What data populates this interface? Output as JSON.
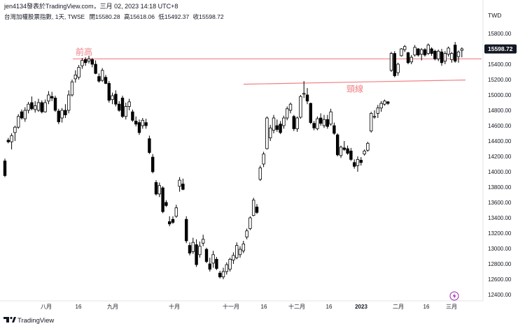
{
  "header": {
    "publisher": "jen4134發表於TradingView.com，三月 02, 2023 14:18 UTC+8",
    "symbol_line": "台灣加權股票指數, 1天, TWSE",
    "ohlc": [
      {
        "label": "開",
        "value": "15580.28"
      },
      {
        "label": "高",
        "value": "15618.06"
      },
      {
        "label": "低",
        "value": "15492.37"
      },
      {
        "label": "收",
        "value": "15598.72"
      }
    ]
  },
  "footer": {
    "brand": "TradingView"
  },
  "colors": {
    "up": "#ffffff",
    "down": "#000000",
    "wick": "#000000",
    "annotation": "#f07f83",
    "price_tag": "#131722",
    "grid": "#e0e3eb",
    "accent": "#9c27b0"
  },
  "chart_data": {
    "type": "candlestick",
    "currency": "TWD",
    "last_price": "15598.72",
    "ylim": [
      12300,
      15980
    ],
    "y_ticks": [
      12400,
      12600,
      12800,
      13000,
      13200,
      13400,
      13600,
      13800,
      14000,
      14200,
      14400,
      14600,
      14800,
      15000,
      15200,
      15400,
      15600,
      15800
    ],
    "x_ticks": [
      "八月",
      "16",
      "九月",
      "十月",
      "十一月",
      "16",
      "十二月",
      "16",
      "2023",
      "二月",
      "16",
      "三月"
    ],
    "x_tick_bold": "2023",
    "annotations": [
      {
        "text": "前高",
        "price": 15470
      },
      {
        "text": "頸線",
        "price": 15170
      }
    ],
    "candles": [
      {
        "o": 14140,
        "h": 14170,
        "l": 13930,
        "c": 13950
      },
      {
        "o": 14410,
        "h": 14440,
        "l": 14370,
        "c": 14390
      },
      {
        "o": 14390,
        "h": 14500,
        "l": 14290,
        "c": 14470
      },
      {
        "o": 14510,
        "h": 14600,
        "l": 14400,
        "c": 14580
      },
      {
        "o": 14580,
        "h": 14750,
        "l": 14560,
        "c": 14720
      },
      {
        "o": 14780,
        "h": 14810,
        "l": 14680,
        "c": 14700
      },
      {
        "o": 14690,
        "h": 14840,
        "l": 14650,
        "c": 14800
      },
      {
        "o": 14800,
        "h": 14910,
        "l": 14760,
        "c": 14880
      },
      {
        "o": 14900,
        "h": 14980,
        "l": 14800,
        "c": 14820
      },
      {
        "o": 14810,
        "h": 14920,
        "l": 14770,
        "c": 14860
      },
      {
        "o": 14800,
        "h": 14950,
        "l": 14780,
        "c": 14900
      },
      {
        "o": 14900,
        "h": 14930,
        "l": 14760,
        "c": 14780
      },
      {
        "o": 14780,
        "h": 14940,
        "l": 14770,
        "c": 14900
      },
      {
        "o": 14920,
        "h": 15050,
        "l": 14880,
        "c": 15000
      },
      {
        "o": 14980,
        "h": 15040,
        "l": 14920,
        "c": 14960
      },
      {
        "o": 14960,
        "h": 14990,
        "l": 14780,
        "c": 14800
      },
      {
        "o": 14790,
        "h": 14820,
        "l": 14620,
        "c": 14650
      },
      {
        "o": 14700,
        "h": 14830,
        "l": 14640,
        "c": 14800
      },
      {
        "o": 14800,
        "h": 14880,
        "l": 14700,
        "c": 14740
      },
      {
        "o": 14800,
        "h": 15060,
        "l": 14760,
        "c": 15000
      },
      {
        "o": 15000,
        "h": 15200,
        "l": 14980,
        "c": 15170
      },
      {
        "o": 15210,
        "h": 15320,
        "l": 15160,
        "c": 15260
      },
      {
        "o": 15230,
        "h": 15390,
        "l": 15200,
        "c": 15360
      },
      {
        "o": 15380,
        "h": 15480,
        "l": 15340,
        "c": 15450
      },
      {
        "o": 15460,
        "h": 15490,
        "l": 15380,
        "c": 15420
      },
      {
        "o": 15440,
        "h": 15510,
        "l": 15410,
        "c": 15470
      },
      {
        "o": 15460,
        "h": 15480,
        "l": 15360,
        "c": 15400
      },
      {
        "o": 15400,
        "h": 15450,
        "l": 15270,
        "c": 15280
      },
      {
        "o": 15240,
        "h": 15280,
        "l": 15160,
        "c": 15180
      },
      {
        "o": 15190,
        "h": 15350,
        "l": 15170,
        "c": 15320
      },
      {
        "o": 15230,
        "h": 15260,
        "l": 15140,
        "c": 15150
      },
      {
        "o": 15150,
        "h": 15180,
        "l": 14900,
        "c": 14930
      },
      {
        "o": 14940,
        "h": 15030,
        "l": 14880,
        "c": 14990
      },
      {
        "o": 15010,
        "h": 15060,
        "l": 14850,
        "c": 14880
      },
      {
        "o": 14880,
        "h": 14920,
        "l": 14780,
        "c": 14800
      },
      {
        "o": 14960,
        "h": 14990,
        "l": 14700,
        "c": 14720
      },
      {
        "o": 14720,
        "h": 14900,
        "l": 14680,
        "c": 14850
      },
      {
        "o": 14850,
        "h": 14950,
        "l": 14800,
        "c": 14910
      },
      {
        "o": 14780,
        "h": 14810,
        "l": 14650,
        "c": 14670
      },
      {
        "o": 14660,
        "h": 14720,
        "l": 14590,
        "c": 14620
      },
      {
        "o": 14640,
        "h": 14680,
        "l": 14480,
        "c": 14510
      },
      {
        "o": 14600,
        "h": 14700,
        "l": 14560,
        "c": 14670
      },
      {
        "o": 14640,
        "h": 14690,
        "l": 14560,
        "c": 14600
      },
      {
        "o": 14430,
        "h": 14470,
        "l": 14230,
        "c": 14250
      },
      {
        "o": 14190,
        "h": 14230,
        "l": 13980,
        "c": 14000
      },
      {
        "o": 13860,
        "h": 13890,
        "l": 13690,
        "c": 13710
      },
      {
        "o": 13710,
        "h": 13860,
        "l": 13670,
        "c": 13820
      },
      {
        "o": 13790,
        "h": 13810,
        "l": 13460,
        "c": 13480
      },
      {
        "o": 13600,
        "h": 13630,
        "l": 13540,
        "c": 13560
      },
      {
        "o": 13350,
        "h": 13420,
        "l": 13290,
        "c": 13320
      },
      {
        "o": 13380,
        "h": 13420,
        "l": 13320,
        "c": 13340
      },
      {
        "o": 13420,
        "h": 13570,
        "l": 13400,
        "c": 13530
      },
      {
        "o": 13810,
        "h": 13930,
        "l": 13740,
        "c": 13890
      },
      {
        "o": 13840,
        "h": 13910,
        "l": 13760,
        "c": 13770
      },
      {
        "o": 13380,
        "h": 13420,
        "l": 13070,
        "c": 13100
      },
      {
        "o": 13040,
        "h": 13080,
        "l": 12910,
        "c": 12940
      },
      {
        "o": 12960,
        "h": 13140,
        "l": 12930,
        "c": 13080
      },
      {
        "o": 13050,
        "h": 13120,
        "l": 12760,
        "c": 12790
      },
      {
        "o": 12920,
        "h": 13090,
        "l": 12880,
        "c": 13030
      },
      {
        "o": 13070,
        "h": 13180,
        "l": 13030,
        "c": 13120
      },
      {
        "o": 12990,
        "h": 13010,
        "l": 12810,
        "c": 12830
      },
      {
        "o": 12800,
        "h": 12880,
        "l": 12700,
        "c": 12730
      },
      {
        "o": 12810,
        "h": 12970,
        "l": 12750,
        "c": 12920
      },
      {
        "o": 12860,
        "h": 12890,
        "l": 12720,
        "c": 12740
      },
      {
        "o": 12680,
        "h": 12710,
        "l": 12610,
        "c": 12630
      },
      {
        "o": 12630,
        "h": 12750,
        "l": 12600,
        "c": 12700
      },
      {
        "o": 12700,
        "h": 12820,
        "l": 12660,
        "c": 12790
      },
      {
        "o": 12730,
        "h": 12880,
        "l": 12700,
        "c": 12860
      },
      {
        "o": 12850,
        "h": 12950,
        "l": 12800,
        "c": 12910
      },
      {
        "o": 12880,
        "h": 13080,
        "l": 12860,
        "c": 13040
      },
      {
        "o": 12920,
        "h": 13030,
        "l": 12880,
        "c": 12990
      },
      {
        "o": 12970,
        "h": 13100,
        "l": 12940,
        "c": 13060
      },
      {
        "o": 13150,
        "h": 13260,
        "l": 13120,
        "c": 13230
      },
      {
        "o": 13260,
        "h": 13420,
        "l": 13240,
        "c": 13400
      },
      {
        "o": 13430,
        "h": 13660,
        "l": 13420,
        "c": 13630
      },
      {
        "o": 13540,
        "h": 13580,
        "l": 13450,
        "c": 13470
      },
      {
        "o": 13900,
        "h": 14080,
        "l": 13880,
        "c": 14050
      },
      {
        "o": 14100,
        "h": 14260,
        "l": 14060,
        "c": 14230
      },
      {
        "o": 14300,
        "h": 14720,
        "l": 14290,
        "c": 14700
      },
      {
        "o": 14440,
        "h": 14610,
        "l": 14400,
        "c": 14570
      },
      {
        "o": 14540,
        "h": 14740,
        "l": 14500,
        "c": 14700
      },
      {
        "o": 14600,
        "h": 14680,
        "l": 14520,
        "c": 14550
      },
      {
        "o": 14620,
        "h": 14660,
        "l": 14490,
        "c": 14510
      },
      {
        "o": 14600,
        "h": 14730,
        "l": 14560,
        "c": 14700
      },
      {
        "o": 14700,
        "h": 14850,
        "l": 14670,
        "c": 14820
      },
      {
        "o": 14800,
        "h": 14900,
        "l": 14760,
        "c": 14880
      },
      {
        "o": 14720,
        "h": 14740,
        "l": 14530,
        "c": 14560
      },
      {
        "o": 14560,
        "h": 14720,
        "l": 14520,
        "c": 14700
      },
      {
        "o": 14710,
        "h": 15000,
        "l": 14690,
        "c": 14980
      },
      {
        "o": 15010,
        "h": 15180,
        "l": 14960,
        "c": 15020
      },
      {
        "o": 15000,
        "h": 15090,
        "l": 14880,
        "c": 14920
      },
      {
        "o": 14890,
        "h": 14900,
        "l": 14620,
        "c": 14640
      },
      {
        "o": 14630,
        "h": 14660,
        "l": 14540,
        "c": 14570
      },
      {
        "o": 14560,
        "h": 14720,
        "l": 14540,
        "c": 14690
      },
      {
        "o": 14700,
        "h": 14760,
        "l": 14600,
        "c": 14630
      },
      {
        "o": 14600,
        "h": 14740,
        "l": 14570,
        "c": 14680
      },
      {
        "o": 14680,
        "h": 14740,
        "l": 14560,
        "c": 14590
      },
      {
        "o": 14620,
        "h": 14820,
        "l": 14600,
        "c": 14780
      },
      {
        "o": 14600,
        "h": 14640,
        "l": 14480,
        "c": 14500
      },
      {
        "o": 14480,
        "h": 14500,
        "l": 14200,
        "c": 14220
      },
      {
        "o": 14210,
        "h": 14340,
        "l": 14180,
        "c": 14320
      },
      {
        "o": 14310,
        "h": 14400,
        "l": 14270,
        "c": 14290
      },
      {
        "o": 14300,
        "h": 14340,
        "l": 14220,
        "c": 14240
      },
      {
        "o": 14270,
        "h": 14310,
        "l": 14140,
        "c": 14160
      },
      {
        "o": 14120,
        "h": 14160,
        "l": 14040,
        "c": 14070
      },
      {
        "o": 14080,
        "h": 14200,
        "l": 14000,
        "c": 14160
      },
      {
        "o": 14150,
        "h": 14190,
        "l": 14080,
        "c": 14120
      },
      {
        "o": 14230,
        "h": 14290,
        "l": 14210,
        "c": 14270
      },
      {
        "o": 14280,
        "h": 14390,
        "l": 14260,
        "c": 14370
      },
      {
        "o": 14530,
        "h": 14780,
        "l": 14510,
        "c": 14760
      },
      {
        "o": 14720,
        "h": 14800,
        "l": 14690,
        "c": 14720
      },
      {
        "o": 14760,
        "h": 14870,
        "l": 14700,
        "c": 14830
      },
      {
        "o": 14830,
        "h": 14920,
        "l": 14780,
        "c": 14890
      },
      {
        "o": 14880,
        "h": 14940,
        "l": 14860,
        "c": 14920
      },
      {
        "o": 14910,
        "h": 14920,
        "l": 14870,
        "c": 14890
      },
      {
        "o": 15320,
        "h": 15560,
        "l": 15300,
        "c": 15540
      },
      {
        "o": 15540,
        "h": 15570,
        "l": 15230,
        "c": 15250
      },
      {
        "o": 15290,
        "h": 15420,
        "l": 15250,
        "c": 15400
      },
      {
        "o": 15510,
        "h": 15610,
        "l": 15500,
        "c": 15600
      },
      {
        "o": 15590,
        "h": 15650,
        "l": 15560,
        "c": 15630
      },
      {
        "o": 15550,
        "h": 15560,
        "l": 15400,
        "c": 15420
      },
      {
        "o": 15430,
        "h": 15520,
        "l": 15400,
        "c": 15490
      },
      {
        "o": 15520,
        "h": 15650,
        "l": 15500,
        "c": 15620
      },
      {
        "o": 15600,
        "h": 15610,
        "l": 15500,
        "c": 15520
      },
      {
        "o": 15530,
        "h": 15610,
        "l": 15450,
        "c": 15590
      },
      {
        "o": 15590,
        "h": 15610,
        "l": 15500,
        "c": 15520
      },
      {
        "o": 15540,
        "h": 15670,
        "l": 15520,
        "c": 15650
      },
      {
        "o": 15600,
        "h": 15620,
        "l": 15510,
        "c": 15540
      },
      {
        "o": 15570,
        "h": 15590,
        "l": 15450,
        "c": 15470
      },
      {
        "o": 15470,
        "h": 15590,
        "l": 15440,
        "c": 15570
      },
      {
        "o": 15560,
        "h": 15600,
        "l": 15380,
        "c": 15420
      },
      {
        "o": 15440,
        "h": 15570,
        "l": 15400,
        "c": 15540
      },
      {
        "o": 15530,
        "h": 15630,
        "l": 15500,
        "c": 15610
      },
      {
        "o": 15460,
        "h": 15560,
        "l": 15420,
        "c": 15540
      },
      {
        "o": 15650,
        "h": 15690,
        "l": 15420,
        "c": 15440
      },
      {
        "o": 15500,
        "h": 15580,
        "l": 15420,
        "c": 15560
      },
      {
        "o": 15580,
        "h": 15620,
        "l": 15490,
        "c": 15600
      }
    ]
  }
}
